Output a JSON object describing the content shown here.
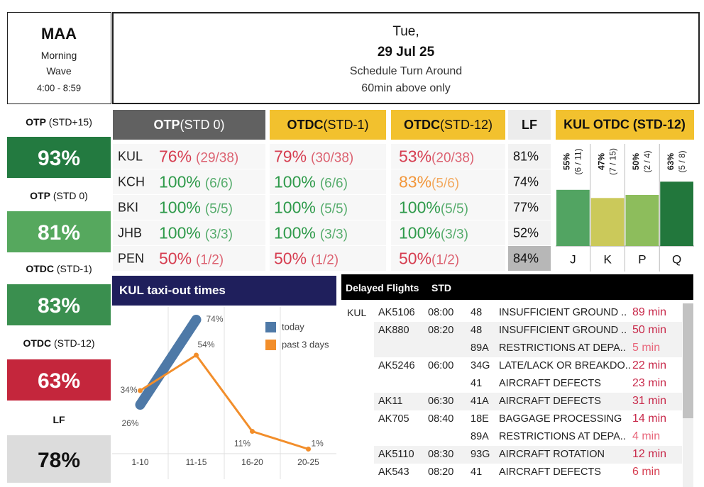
{
  "header": {
    "station": "MAA",
    "wave": [
      "Morning",
      "Wave"
    ],
    "time": "4:00 - 8:59",
    "day": "Tue,",
    "date": "29 Jul 25",
    "subtitle": "Schedule Turn Around",
    "note": "60min above only"
  },
  "kpis": [
    {
      "label": "OTP",
      "qualifier": "(STD+15)",
      "value": "93%",
      "color": "#237a40",
      "text_color": "#ffffff"
    },
    {
      "label": "OTP",
      "qualifier": "(STD 0)",
      "value": "81%",
      "color": "#56a85e",
      "text_color": "#ffffff"
    },
    {
      "label": "OTDC",
      "qualifier": "(STD-1)",
      "value": "83%",
      "color": "#3a8f4f",
      "text_color": "#ffffff"
    },
    {
      "label": "OTDC",
      "qualifier": "(STD-12)",
      "value": "63%",
      "color": "#c4263c",
      "text_color": "#ffffff"
    },
    {
      "label": "LF",
      "value": "78%",
      "color": "#dcdcdc",
      "text_color": "#111111"
    }
  ],
  "otp_table": {
    "columns": [
      {
        "name": "OTP",
        "qualifier": "(STD 0)",
        "color": "#616161",
        "text_color": "#ffffff"
      },
      {
        "name": "OTDC",
        "qualifier": "(STD-1)",
        "color": "#f2c12e",
        "text_color": "#111111"
      },
      {
        "name": "OTDC",
        "qualifier": "(STD-12)",
        "color": "#f2c12e",
        "text_color": "#111111"
      },
      {
        "name": "LF",
        "color": "#ececec",
        "text_color": "#111111"
      }
    ],
    "rows": [
      {
        "station": "KUL",
        "cells": [
          {
            "pct": "76%",
            "count": "(29/38)",
            "color": "#d63d50"
          },
          {
            "pct": "79%",
            "count": "(30/38)",
            "color": "#d63d50"
          },
          {
            "pct": "53%",
            "count": "(20/38)",
            "color": "#d63d50"
          }
        ],
        "lf": "81%",
        "lf_color": "#f2f2f2"
      },
      {
        "station": "KCH",
        "cells": [
          {
            "pct": "100%",
            "count": "(6/6)",
            "color": "#2e9a4a"
          },
          {
            "pct": "100%",
            "count": "(6/6)",
            "color": "#2e9a4a"
          },
          {
            "pct": "83%",
            "count": "(5/6)",
            "color": "#f2963a"
          }
        ],
        "lf": "74%",
        "lf_color": "#f2f2f2"
      },
      {
        "station": "BKI",
        "cells": [
          {
            "pct": "100%",
            "count": "(5/5)",
            "color": "#2e9a4a"
          },
          {
            "pct": "100%",
            "count": "(5/5)",
            "color": "#2e9a4a"
          },
          {
            "pct": "100%",
            "count": "(5/5)",
            "color": "#2e9a4a"
          }
        ],
        "lf": "77%",
        "lf_color": "#f2f2f2"
      },
      {
        "station": "JHB",
        "cells": [
          {
            "pct": "100%",
            "count": "(3/3)",
            "color": "#2e9a4a"
          },
          {
            "pct": "100%",
            "count": "(3/3)",
            "color": "#2e9a4a"
          },
          {
            "pct": "100%",
            "count": "(3/3)",
            "color": "#2e9a4a"
          }
        ],
        "lf": "52%",
        "lf_color": "#f2f2f2"
      },
      {
        "station": "PEN",
        "cells": [
          {
            "pct": "50%",
            "count": "(1/2)",
            "color": "#d63d50"
          },
          {
            "pct": "50%",
            "count": "(1/2)",
            "color": "#d63d50"
          },
          {
            "pct": "50%",
            "count": "(1/2)",
            "color": "#d63d50"
          }
        ],
        "lf": "84%",
        "lf_color": "#b7b7b7"
      }
    ]
  },
  "chart_data": [
    {
      "type": "bar",
      "title": "KUL OTDC (STD-12)",
      "title_color": "#f2c12e",
      "categories": [
        "J",
        "K",
        "P",
        "Q"
      ],
      "values": [
        55,
        47,
        50,
        63
      ],
      "value_labels": [
        "55%",
        "47%",
        "50%",
        "63%"
      ],
      "counts": [
        "(6 / 11)",
        "(7 / 15)",
        "(2 / 4)",
        "(5 / 8)"
      ],
      "colors": [
        "#52a462",
        "#cbc95a",
        "#8dbd5c",
        "#22773c"
      ],
      "ylim": [
        0,
        100
      ]
    },
    {
      "type": "line",
      "title": "KUL taxi-out times",
      "title_color": "#1f1f5c",
      "categories": [
        "1-10",
        "11-15",
        "16-20",
        "20-25"
      ],
      "series": [
        {
          "name": "today",
          "color": "#4e79a7",
          "values": [
            26,
            74,
            null,
            null
          ],
          "value_labels": [
            "26%",
            "74%",
            null,
            null
          ]
        },
        {
          "name": "past 3 days",
          "color": "#f28e2b",
          "values": [
            34,
            54,
            11,
            1
          ],
          "value_labels": [
            "34%",
            "54%",
            "11%",
            "1%"
          ]
        }
      ],
      "ylim": [
        0,
        80
      ]
    }
  ],
  "delayed_flights": {
    "title": "Delayed Flights",
    "std_label": "STD",
    "station": "KUL",
    "flights": [
      {
        "flight": "AK5106",
        "std": "08:00",
        "delays": [
          {
            "stand": "48",
            "reason": "INSUFFICIENT GROUND ..",
            "minutes": "89 min",
            "color": "#c8294a"
          }
        ]
      },
      {
        "flight": "AK880",
        "std": "08:20",
        "delays": [
          {
            "stand": "48",
            "reason": "INSUFFICIENT GROUND ..",
            "minutes": "50 min",
            "color": "#c8294a"
          },
          {
            "stand": "89A",
            "reason": "RESTRICTIONS AT DEPA..",
            "minutes": "5 min",
            "color": "#e8657a"
          }
        ]
      },
      {
        "flight": "AK5246",
        "std": "06:00",
        "delays": [
          {
            "stand": "34G",
            "reason": "LATE/LACK OR BREAKDO..",
            "minutes": "22 min",
            "color": "#c8294a"
          },
          {
            "stand": "41",
            "reason": "AIRCRAFT DEFECTS",
            "minutes": "23 min",
            "color": "#c8294a"
          }
        ]
      },
      {
        "flight": "AK11",
        "std": "06:30",
        "delays": [
          {
            "stand": "41A",
            "reason": "AIRCRAFT DEFECTS",
            "minutes": "31 min",
            "color": "#c8294a"
          }
        ]
      },
      {
        "flight": "AK705",
        "std": "08:40",
        "delays": [
          {
            "stand": "18E",
            "reason": "BAGGAGE PROCESSING",
            "minutes": "14 min",
            "color": "#c8294a"
          },
          {
            "stand": "89A",
            "reason": "RESTRICTIONS AT DEPA..",
            "minutes": "4 min",
            "color": "#e8657a"
          }
        ]
      },
      {
        "flight": "AK5110",
        "std": "08:30",
        "delays": [
          {
            "stand": "93G",
            "reason": "AIRCRAFT ROTATION",
            "minutes": "12 min",
            "color": "#c8294a"
          }
        ]
      },
      {
        "flight": "AK543",
        "std": "08:20",
        "delays": [
          {
            "stand": "41",
            "reason": "AIRCRAFT DEFECTS",
            "minutes": "6 min",
            "color": "#d63d50"
          }
        ]
      }
    ]
  }
}
